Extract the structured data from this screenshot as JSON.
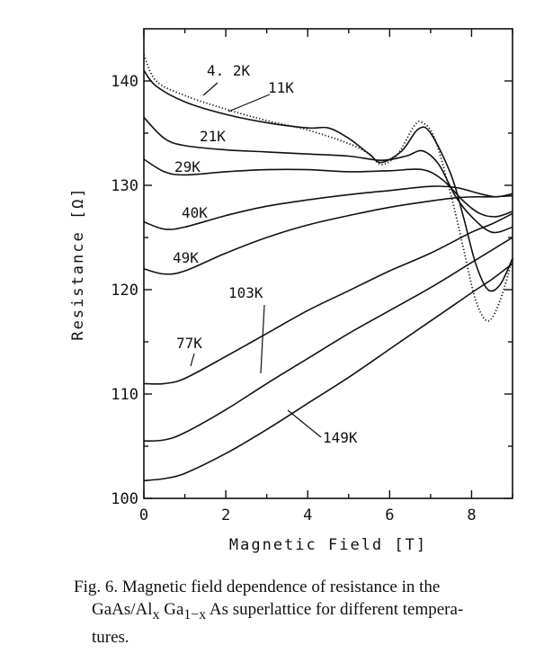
{
  "chart_data": {
    "type": "line",
    "xlabel": "Magnetic Field [T]",
    "ylabel": "Resistance [Ω]",
    "xlim": [
      0,
      9
    ],
    "ylim": [
      100,
      145
    ],
    "x_ticks": [
      "0",
      "2",
      "4",
      "6",
      "8"
    ],
    "y_ticks": [
      "100",
      "110",
      "120",
      "130",
      "140"
    ],
    "grid": false,
    "series": [
      {
        "name": "4.2K",
        "style": "dotted",
        "points": [
          [
            0,
            142.5
          ],
          [
            0.3,
            140
          ],
          [
            1,
            138.6
          ],
          [
            2,
            137.3
          ],
          [
            3,
            136.2
          ],
          [
            4,
            135.3
          ],
          [
            5,
            134
          ],
          [
            5.5,
            133
          ],
          [
            5.8,
            132
          ],
          [
            6.2,
            133
          ],
          [
            6.6,
            135.7
          ],
          [
            6.8,
            136
          ],
          [
            7.1,
            134.5
          ],
          [
            7.5,
            129
          ],
          [
            7.8,
            124
          ],
          [
            8.1,
            119
          ],
          [
            8.4,
            117
          ],
          [
            8.7,
            119
          ],
          [
            9,
            123
          ]
        ]
      },
      {
        "name": "11K",
        "style": "solid",
        "points": [
          [
            0,
            141
          ],
          [
            0.3,
            139.5
          ],
          [
            1,
            138
          ],
          [
            2,
            136.8
          ],
          [
            3,
            136
          ],
          [
            4,
            135.5
          ],
          [
            4.5,
            135.5
          ],
          [
            5,
            134.5
          ],
          [
            5.5,
            133
          ],
          [
            5.8,
            132.2
          ],
          [
            6.3,
            133.3
          ],
          [
            6.7,
            135.4
          ],
          [
            7,
            135
          ],
          [
            7.5,
            131
          ],
          [
            7.8,
            127
          ],
          [
            8.1,
            122.5
          ],
          [
            8.4,
            120
          ],
          [
            8.7,
            120.5
          ],
          [
            9,
            123
          ]
        ]
      },
      {
        "name": "21K",
        "style": "solid",
        "points": [
          [
            0,
            136.5
          ],
          [
            0.5,
            134.5
          ],
          [
            1,
            133.8
          ],
          [
            2,
            133.4
          ],
          [
            3,
            133.2
          ],
          [
            4,
            133
          ],
          [
            5,
            132.8
          ],
          [
            5.8,
            132.4
          ],
          [
            6.4,
            132.8
          ],
          [
            6.8,
            133.3
          ],
          [
            7.2,
            132
          ],
          [
            7.6,
            129
          ],
          [
            8,
            127
          ],
          [
            8.5,
            125.5
          ],
          [
            9,
            126
          ]
        ]
      },
      {
        "name": "29K",
        "style": "solid",
        "points": [
          [
            0,
            132.5
          ],
          [
            0.5,
            131.3
          ],
          [
            1,
            131
          ],
          [
            2,
            131.3
          ],
          [
            3,
            131.5
          ],
          [
            4,
            131.5
          ],
          [
            5,
            131.3
          ],
          [
            6,
            131.4
          ],
          [
            6.8,
            131.5
          ],
          [
            7.3,
            130.5
          ],
          [
            7.8,
            128.5
          ],
          [
            8.2,
            127.3
          ],
          [
            8.6,
            127
          ],
          [
            9,
            127.5
          ]
        ]
      },
      {
        "name": "40K",
        "style": "solid",
        "points": [
          [
            0,
            126.5
          ],
          [
            0.5,
            125.8
          ],
          [
            1,
            126
          ],
          [
            2,
            127.1
          ],
          [
            3,
            128
          ],
          [
            4,
            128.6
          ],
          [
            5,
            129.1
          ],
          [
            6,
            129.5
          ],
          [
            7,
            129.9
          ],
          [
            7.6,
            129.8
          ],
          [
            8.2,
            129.2
          ],
          [
            8.6,
            128.9
          ],
          [
            9,
            129.2
          ]
        ]
      },
      {
        "name": "49K",
        "style": "solid",
        "points": [
          [
            0,
            122
          ],
          [
            0.5,
            121.5
          ],
          [
            1,
            121.8
          ],
          [
            2,
            123.5
          ],
          [
            3,
            125
          ],
          [
            4,
            126.2
          ],
          [
            5,
            127.1
          ],
          [
            6,
            127.9
          ],
          [
            7,
            128.5
          ],
          [
            7.6,
            128.8
          ],
          [
            8.1,
            128.9
          ],
          [
            8.5,
            128.9
          ],
          [
            9,
            129
          ]
        ]
      },
      {
        "name": "77K",
        "style": "solid",
        "points": [
          [
            0,
            111
          ],
          [
            0.5,
            111
          ],
          [
            1,
            111.5
          ],
          [
            2,
            113.6
          ],
          [
            3,
            115.8
          ],
          [
            4,
            118
          ],
          [
            5,
            119.9
          ],
          [
            6,
            121.8
          ],
          [
            7,
            123.5
          ],
          [
            8,
            125.5
          ],
          [
            8.5,
            126.3
          ],
          [
            9,
            127.3
          ]
        ]
      },
      {
        "name": "103K",
        "style": "solid",
        "points": [
          [
            0,
            105.5
          ],
          [
            0.5,
            105.6
          ],
          [
            1,
            106.3
          ],
          [
            2,
            108.5
          ],
          [
            3,
            111
          ],
          [
            4,
            113.4
          ],
          [
            5,
            115.8
          ],
          [
            6,
            118
          ],
          [
            7,
            120.2
          ],
          [
            8,
            122.6
          ],
          [
            8.5,
            123.8
          ],
          [
            9,
            125
          ]
        ]
      },
      {
        "name": "149K",
        "style": "solid",
        "points": [
          [
            0,
            101.7
          ],
          [
            0.5,
            101.9
          ],
          [
            1,
            102.4
          ],
          [
            2,
            104.3
          ],
          [
            3,
            106.6
          ],
          [
            4,
            109.1
          ],
          [
            5,
            111.6
          ],
          [
            6,
            114.3
          ],
          [
            7,
            117
          ],
          [
            8,
            119.7
          ],
          [
            8.5,
            121
          ],
          [
            9,
            122.5
          ]
        ]
      }
    ],
    "labels": [
      "4. 2K",
      "11K",
      "21K",
      "29K",
      "40K",
      "49K",
      "103K",
      "77K",
      "149K"
    ]
  },
  "caption": {
    "line1": "Fig. 6.   Magnetic field dependence of resistance in the",
    "line2": "GaAs/Al",
    "line2_sub1": "x",
    "line2_mid": " Ga",
    "line2_sub2": "1−x",
    "line2_end": " As superlattice for different tempera-",
    "line3": "tures."
  }
}
